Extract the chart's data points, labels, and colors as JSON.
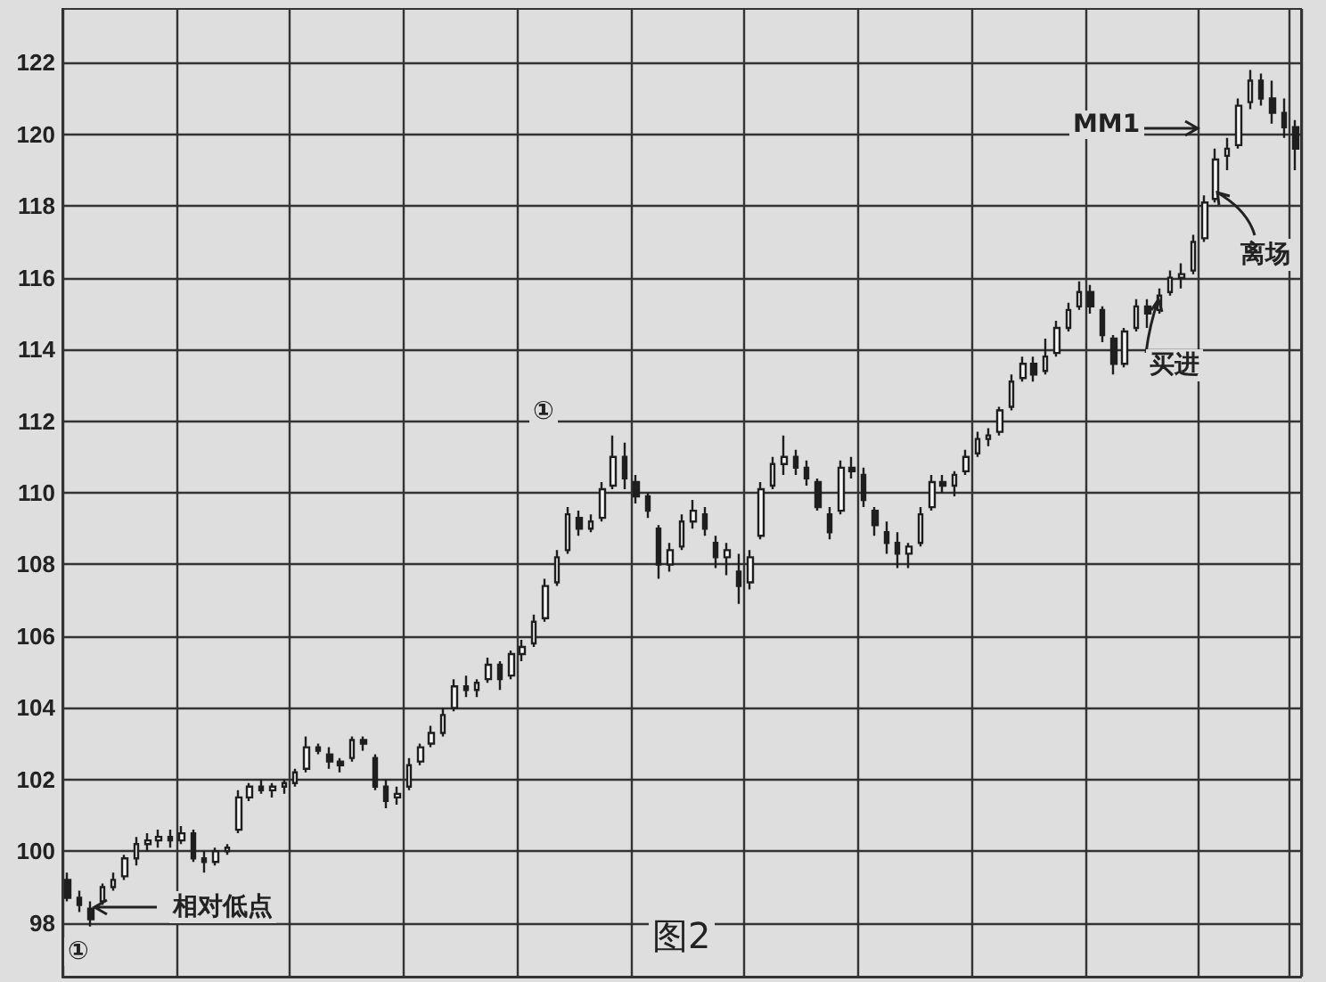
{
  "chart_data": {
    "type": "candlestick",
    "categories": [
      null,
      null,
      null,
      null,
      null,
      null,
      null,
      null,
      null,
      null,
      null,
      null,
      null,
      null,
      null,
      null,
      null,
      null,
      null,
      null,
      null,
      null,
      null,
      null,
      null,
      null,
      null,
      null,
      null,
      null,
      null,
      null,
      null,
      null,
      null,
      null,
      null,
      null,
      null,
      null,
      null,
      null,
      null,
      null,
      null,
      null,
      null,
      null,
      null,
      null,
      null,
      null,
      null,
      null,
      null,
      null,
      null,
      null,
      null,
      null,
      null,
      null,
      null,
      null,
      null,
      null,
      null,
      null,
      null,
      null,
      null,
      null,
      null,
      null,
      null,
      null,
      null,
      null,
      null,
      null,
      null,
      null,
      null,
      null,
      null,
      null,
      null,
      null,
      null,
      null,
      null,
      null,
      null,
      null,
      null,
      null,
      null,
      null,
      null,
      null,
      null,
      null,
      null,
      null,
      null,
      null,
      null,
      null,
      null
    ],
    "ohlc": [
      [
        99.2,
        99.4,
        98.6,
        98.7
      ],
      [
        98.7,
        98.9,
        98.3,
        98.5
      ],
      [
        98.4,
        98.6,
        97.9,
        98.1
      ],
      [
        98.6,
        99.1,
        98.5,
        99.0
      ],
      [
        99.0,
        99.4,
        98.9,
        99.2
      ],
      [
        99.3,
        99.9,
        99.2,
        99.8
      ],
      [
        99.8,
        100.4,
        99.6,
        100.2
      ],
      [
        100.2,
        100.5,
        100.0,
        100.3
      ],
      [
        100.3,
        100.6,
        100.1,
        100.4
      ],
      [
        100.4,
        100.6,
        100.1,
        100.3
      ],
      [
        100.3,
        100.7,
        100.2,
        100.5
      ],
      [
        100.5,
        100.6,
        99.7,
        99.8
      ],
      [
        99.8,
        100.0,
        99.4,
        99.7
      ],
      [
        99.7,
        100.1,
        99.6,
        100.0
      ],
      [
        100.0,
        100.2,
        99.9,
        100.1
      ],
      [
        100.6,
        101.7,
        100.5,
        101.5
      ],
      [
        101.5,
        101.9,
        101.4,
        101.8
      ],
      [
        101.8,
        102.0,
        101.6,
        101.7
      ],
      [
        101.7,
        101.9,
        101.5,
        101.8
      ],
      [
        101.8,
        102.0,
        101.6,
        101.9
      ],
      [
        101.9,
        102.3,
        101.8,
        102.2
      ],
      [
        102.3,
        103.2,
        102.2,
        102.9
      ],
      [
        102.9,
        103.0,
        102.7,
        102.8
      ],
      [
        102.7,
        102.9,
        102.3,
        102.5
      ],
      [
        102.5,
        102.6,
        102.2,
        102.4
      ],
      [
        102.6,
        103.2,
        102.5,
        103.1
      ],
      [
        103.1,
        103.2,
        102.8,
        103.0
      ],
      [
        102.6,
        102.7,
        101.7,
        101.8
      ],
      [
        101.8,
        102.0,
        101.2,
        101.4
      ],
      [
        101.5,
        101.8,
        101.3,
        101.6
      ],
      [
        101.8,
        102.6,
        101.7,
        102.4
      ],
      [
        102.5,
        103.0,
        102.4,
        102.9
      ],
      [
        103.0,
        103.5,
        102.9,
        103.3
      ],
      [
        103.3,
        104.0,
        103.2,
        103.8
      ],
      [
        104.0,
        104.8,
        103.9,
        104.6
      ],
      [
        104.6,
        104.9,
        104.3,
        104.5
      ],
      [
        104.5,
        104.8,
        104.3,
        104.7
      ],
      [
        104.8,
        105.4,
        104.7,
        105.2
      ],
      [
        105.2,
        105.3,
        104.5,
        104.8
      ],
      [
        104.9,
        105.6,
        104.8,
        105.5
      ],
      [
        105.5,
        105.9,
        105.3,
        105.7
      ],
      [
        105.8,
        106.6,
        105.7,
        106.4
      ],
      [
        106.5,
        107.6,
        106.4,
        107.4
      ],
      [
        107.5,
        108.4,
        107.4,
        108.2
      ],
      [
        108.4,
        109.6,
        108.3,
        109.4
      ],
      [
        109.3,
        109.5,
        108.8,
        109.0
      ],
      [
        109.0,
        109.4,
        108.9,
        109.2
      ],
      [
        109.3,
        110.3,
        109.2,
        110.1
      ],
      [
        110.2,
        111.6,
        110.1,
        111.0
      ],
      [
        111.0,
        111.4,
        110.1,
        110.4
      ],
      [
        110.3,
        110.5,
        109.7,
        109.9
      ],
      [
        109.9,
        110.0,
        109.3,
        109.5
      ],
      [
        109.0,
        109.1,
        107.6,
        108.0
      ],
      [
        108.0,
        108.6,
        107.8,
        108.4
      ],
      [
        108.5,
        109.4,
        108.4,
        109.2
      ],
      [
        109.2,
        109.8,
        109.0,
        109.5
      ],
      [
        109.4,
        109.6,
        108.8,
        109.0
      ],
      [
        108.6,
        108.8,
        107.9,
        108.2
      ],
      [
        108.2,
        108.6,
        107.7,
        108.4
      ],
      [
        107.8,
        108.3,
        106.9,
        107.4
      ],
      [
        107.5,
        108.4,
        107.3,
        108.2
      ],
      [
        108.8,
        110.3,
        108.7,
        110.1
      ],
      [
        110.2,
        111.0,
        110.1,
        110.8
      ],
      [
        110.8,
        111.6,
        110.5,
        111.0
      ],
      [
        111.0,
        111.2,
        110.5,
        110.7
      ],
      [
        110.7,
        110.9,
        110.2,
        110.4
      ],
      [
        110.3,
        110.4,
        109.5,
        109.6
      ],
      [
        109.4,
        109.6,
        108.7,
        108.9
      ],
      [
        109.5,
        110.9,
        109.4,
        110.7
      ],
      [
        110.7,
        111.0,
        110.4,
        110.6
      ],
      [
        110.5,
        110.7,
        109.6,
        109.8
      ],
      [
        109.5,
        109.6,
        108.8,
        109.1
      ],
      [
        108.9,
        109.2,
        108.3,
        108.6
      ],
      [
        108.6,
        108.9,
        107.9,
        108.3
      ],
      [
        108.3,
        108.6,
        107.9,
        108.5
      ],
      [
        108.6,
        109.6,
        108.5,
        109.4
      ],
      [
        109.6,
        110.5,
        109.5,
        110.3
      ],
      [
        110.3,
        110.5,
        110.0,
        110.2
      ],
      [
        110.2,
        110.6,
        109.9,
        110.5
      ],
      [
        110.6,
        111.2,
        110.5,
        111.0
      ],
      [
        111.1,
        111.7,
        111.0,
        111.5
      ],
      [
        111.5,
        111.8,
        111.3,
        111.6
      ],
      [
        111.7,
        112.4,
        111.6,
        112.3
      ],
      [
        112.4,
        113.3,
        112.3,
        113.1
      ],
      [
        113.2,
        113.8,
        113.1,
        113.6
      ],
      [
        113.6,
        113.8,
        113.1,
        113.3
      ],
      [
        113.4,
        114.3,
        113.3,
        113.8
      ],
      [
        113.9,
        114.8,
        113.8,
        114.6
      ],
      [
        114.6,
        115.3,
        114.5,
        115.1
      ],
      [
        115.2,
        115.9,
        115.1,
        115.6
      ],
      [
        115.6,
        115.8,
        115.0,
        115.2
      ],
      [
        115.1,
        115.2,
        114.2,
        114.4
      ],
      [
        114.3,
        114.4,
        113.3,
        113.6
      ],
      [
        113.6,
        114.6,
        113.5,
        114.5
      ],
      [
        114.6,
        115.4,
        114.5,
        115.2
      ],
      [
        115.2,
        115.4,
        114.6,
        115.0
      ],
      [
        115.1,
        115.7,
        115.0,
        115.5
      ],
      [
        115.6,
        116.2,
        115.5,
        116.0
      ],
      [
        116.0,
        116.4,
        115.7,
        116.1
      ],
      [
        116.2,
        117.2,
        116.1,
        117.0
      ],
      [
        117.1,
        118.3,
        117.0,
        118.1
      ],
      [
        118.2,
        119.6,
        118.1,
        119.3
      ],
      [
        119.4,
        119.9,
        119.0,
        119.6
      ],
      [
        119.7,
        121.0,
        119.6,
        120.8
      ],
      [
        120.9,
        121.8,
        120.7,
        121.5
      ],
      [
        121.5,
        121.7,
        120.8,
        121.0
      ],
      [
        121.0,
        121.5,
        120.3,
        120.6
      ],
      [
        120.6,
        121.0,
        119.9,
        120.2
      ],
      [
        120.2,
        120.4,
        119.0,
        119.6
      ]
    ],
    "color": "#1e1e1e",
    "ylim": [
      96.5,
      123.5
    ],
    "yticks": [
      98,
      100,
      102,
      104,
      106,
      108,
      110,
      112,
      114,
      116,
      118,
      120,
      122
    ],
    "grid": true,
    "tick_labels": "y",
    "annotations": [
      "①",
      "相对低点",
      "①",
      "MM1",
      "离场",
      "买进",
      "图2"
    ]
  }
}
